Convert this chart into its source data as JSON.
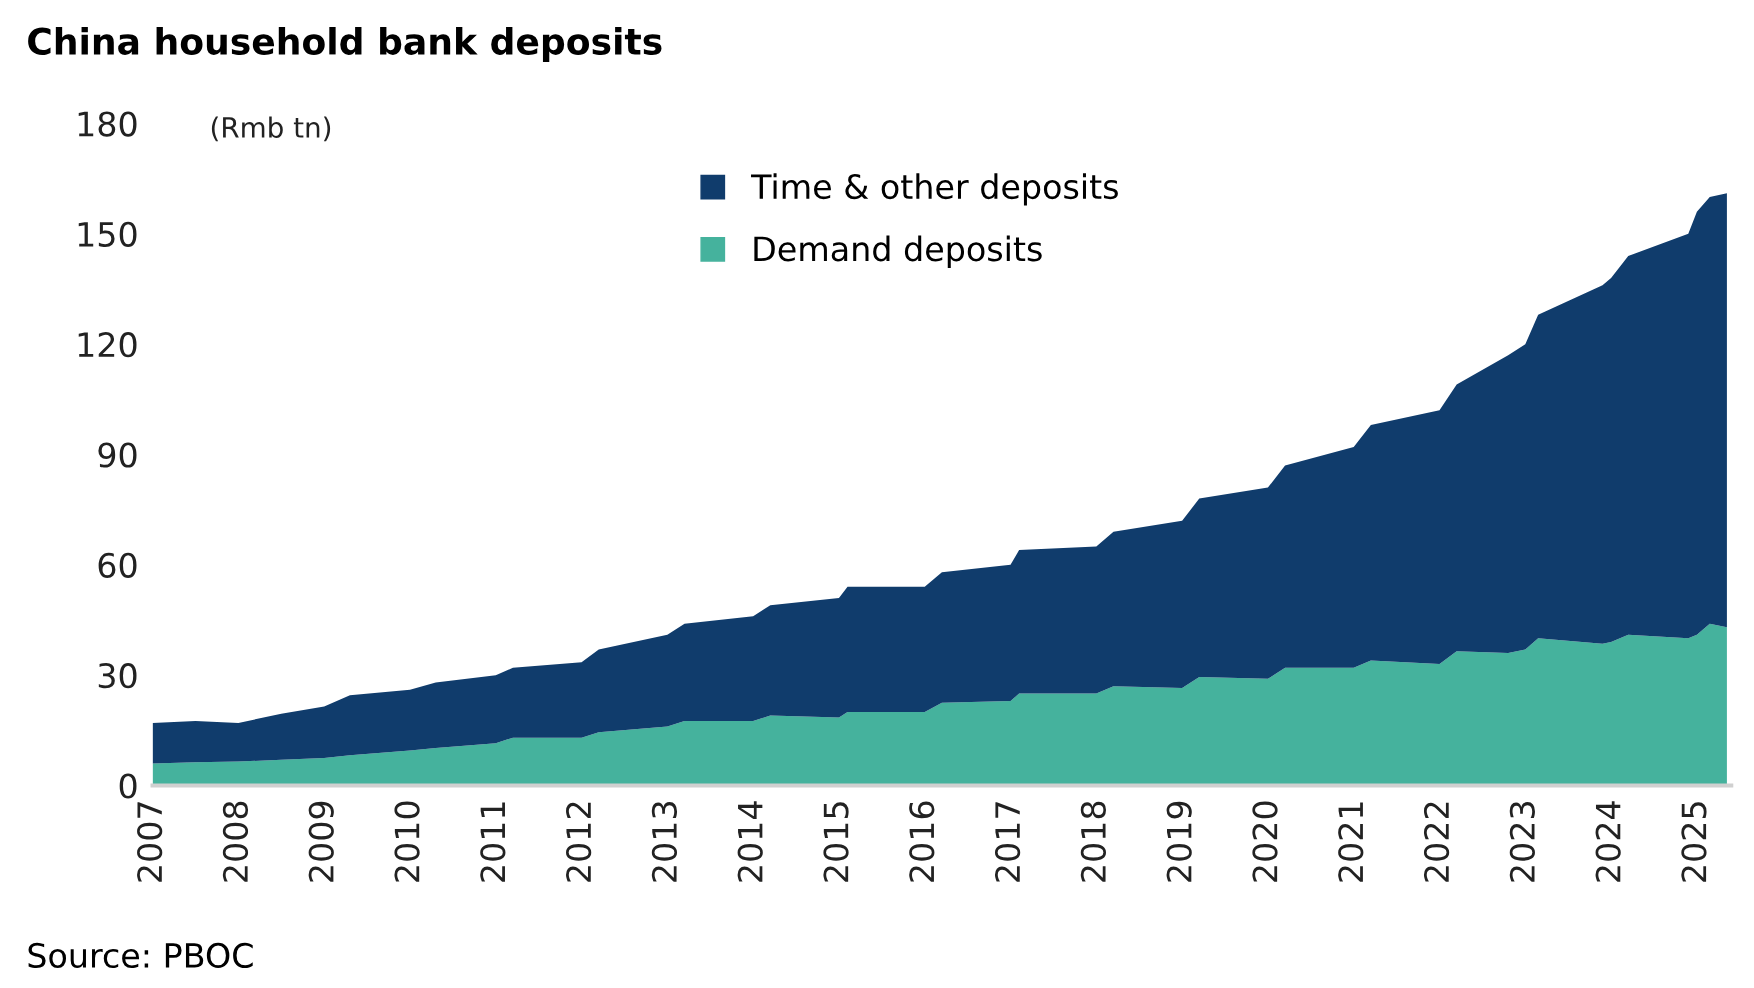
{
  "chart_data": {
    "type": "area",
    "stacked": true,
    "title": "China household bank deposits",
    "ylabel": "(Rmb tn)",
    "x": [
      2007,
      2007.5,
      2008,
      2008.5,
      2009,
      2009.3,
      2010,
      2010.3,
      2011,
      2011.2,
      2012,
      2012.2,
      2013,
      2013.2,
      2014,
      2014.2,
      2015,
      2015.1,
      2016,
      2016.2,
      2017,
      2017.1,
      2018,
      2018.2,
      2019,
      2019.2,
      2020,
      2020.2,
      2021,
      2021.2,
      2022,
      2022.2,
      2022.8,
      2023,
      2023.15,
      2023.9,
      2024,
      2024.2,
      2024.9,
      2025,
      2025.15,
      2025.35
    ],
    "series": [
      {
        "name": "Demand deposits",
        "color": "#45b29d",
        "values": [
          6,
          6.3,
          6.5,
          7,
          7.5,
          8.2,
          9.5,
          10.2,
          11.5,
          13,
          13,
          14.5,
          16,
          17.5,
          17.5,
          19,
          18.5,
          20,
          20,
          22.5,
          23,
          25,
          25,
          27,
          26.5,
          29.5,
          29,
          32,
          32,
          34,
          33,
          36.5,
          36,
          37,
          40,
          38.5,
          39,
          41,
          40,
          41,
          44,
          43
        ]
      },
      {
        "name": "Time & other deposits",
        "color": "#103c6c",
        "values": [
          11,
          11.2,
          10.5,
          12.5,
          14,
          16.3,
          16.5,
          17.8,
          18.5,
          19,
          20.5,
          22.5,
          25,
          26.5,
          28.5,
          30,
          32.5,
          34,
          34,
          35.5,
          37,
          39,
          40,
          42,
          45.5,
          48.5,
          52,
          55,
          60,
          64,
          69,
          72.5,
          81,
          83,
          88,
          97.5,
          99,
          103,
          110,
          115,
          116,
          118
        ]
      }
    ],
    "xlim": [
      2007,
      2025.4
    ],
    "xticks": [
      2007,
      2008,
      2009,
      2010,
      2011,
      2012,
      2013,
      2014,
      2015,
      2016,
      2017,
      2018,
      2019,
      2020,
      2021,
      2022,
      2023,
      2024,
      2025
    ],
    "ylim": [
      0,
      180
    ],
    "yticks": [
      0,
      30,
      60,
      90,
      120,
      150,
      180
    ],
    "grid": false,
    "legend": "top",
    "annotations": [
      "Source: PBOC"
    ]
  }
}
